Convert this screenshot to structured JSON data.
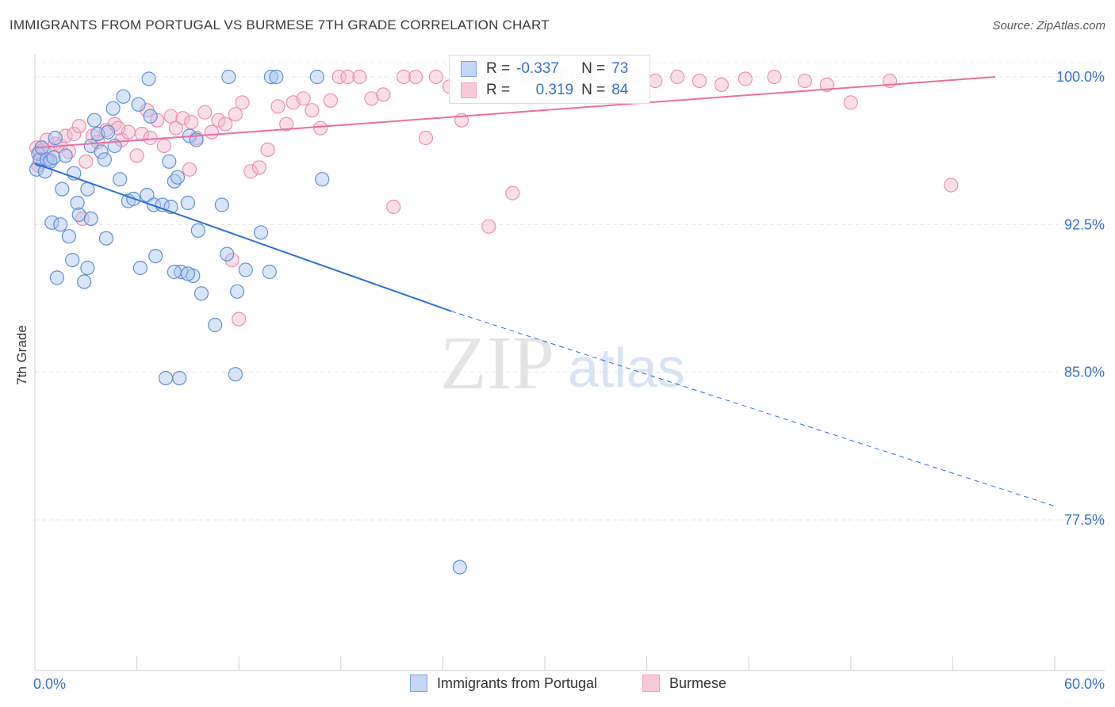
{
  "title": "IMMIGRANTS FROM PORTUGAL VS BURMESE 7TH GRADE CORRELATION CHART",
  "source": "Source: ZipAtlas.com",
  "watermark": {
    "zip": "ZIP",
    "atlas": "atlas"
  },
  "legend": {
    "series1": {
      "r_label": "R =",
      "r_value": "-0.337",
      "n_label": "N =",
      "n_value": "73"
    },
    "series2": {
      "r_label": "R =",
      "r_value": "0.319",
      "n_label": "N =",
      "n_value": "84"
    }
  },
  "bottom_legend": {
    "series1": "Immigrants from Portugal",
    "series2": "Burmese"
  },
  "chart_data": {
    "type": "scatter",
    "ylabel": "7th Grade",
    "xlim": [
      0,
      60
    ],
    "ylim": [
      71,
      100.8
    ],
    "x_tick_labels": [
      "0.0%",
      "60.0%"
    ],
    "y_ticks": [
      100.0,
      92.5,
      85.0,
      77.5
    ],
    "y_tick_labels": [
      "100.0%",
      "92.5%",
      "85.0%",
      "77.5%"
    ],
    "grid": true,
    "colors": {
      "series1": "#6f9fe0",
      "series2": "#f0a0be",
      "trend1": "#2b6fd4",
      "trend2": "#e8709a",
      "tick_label": "#3a6fd0"
    },
    "series": [
      {
        "name": "Immigrants from Portugal",
        "trend": {
          "x0": 0,
          "y0": 95.6,
          "x1": 24.5,
          "y1": 88.1,
          "x_dash_end": 60,
          "y_dash_end": 78.2
        },
        "points": [
          [
            0.1,
            95.3
          ],
          [
            0.2,
            96.1
          ],
          [
            0.3,
            95.8
          ],
          [
            0.4,
            96.4
          ],
          [
            0.6,
            95.2
          ],
          [
            0.7,
            95.8
          ],
          [
            0.9,
            95.7
          ],
          [
            1.1,
            95.9
          ],
          [
            1.2,
            96.9
          ],
          [
            1.6,
            94.3
          ],
          [
            1.8,
            96.0
          ],
          [
            2.3,
            95.1
          ],
          [
            2.5,
            93.6
          ],
          [
            2.6,
            93.0
          ],
          [
            3.1,
            94.3
          ],
          [
            3.3,
            96.5
          ],
          [
            3.5,
            97.8
          ],
          [
            3.7,
            97.1
          ],
          [
            3.9,
            96.2
          ],
          [
            4.1,
            95.8
          ],
          [
            4.3,
            97.2
          ],
          [
            4.6,
            98.4
          ],
          [
            4.7,
            96.5
          ],
          [
            5.0,
            94.8
          ],
          [
            5.2,
            99.0
          ],
          [
            5.5,
            93.7
          ],
          [
            5.8,
            93.8
          ],
          [
            6.1,
            98.6
          ],
          [
            6.6,
            94.0
          ],
          [
            6.7,
            99.9
          ],
          [
            6.8,
            98.0
          ],
          [
            7.0,
            93.5
          ],
          [
            7.1,
            90.9
          ],
          [
            7.5,
            93.5
          ],
          [
            7.9,
            95.7
          ],
          [
            8.0,
            93.4
          ],
          [
            8.2,
            94.7
          ],
          [
            8.4,
            94.9
          ],
          [
            8.6,
            90.1
          ],
          [
            9.0,
            93.6
          ],
          [
            9.1,
            97.0
          ],
          [
            9.5,
            96.8
          ],
          [
            9.6,
            92.2
          ],
          [
            9.3,
            89.9
          ],
          [
            9.8,
            89.0
          ],
          [
            10.6,
            87.4
          ],
          [
            11.0,
            93.5
          ],
          [
            11.3,
            91.0
          ],
          [
            11.4,
            100.0
          ],
          [
            11.8,
            84.9
          ],
          [
            11.9,
            89.1
          ],
          [
            12.4,
            90.2
          ],
          [
            13.3,
            92.1
          ],
          [
            13.8,
            90.1
          ],
          [
            13.9,
            100.0
          ],
          [
            14.2,
            100.0
          ],
          [
            16.6,
            100.0
          ],
          [
            16.9,
            94.8
          ],
          [
            25.0,
            75.1
          ],
          [
            1.0,
            92.6
          ],
          [
            1.5,
            92.5
          ],
          [
            2.0,
            91.9
          ],
          [
            2.2,
            90.7
          ],
          [
            3.1,
            90.3
          ],
          [
            4.2,
            91.8
          ],
          [
            6.2,
            90.3
          ],
          [
            7.7,
            84.7
          ],
          [
            8.2,
            90.1
          ],
          [
            8.5,
            84.7
          ],
          [
            9.0,
            90.0
          ],
          [
            1.3,
            89.8
          ],
          [
            2.9,
            89.6
          ],
          [
            3.3,
            92.8
          ]
        ]
      },
      {
        "name": "Burmese",
        "trend": {
          "x0": 0,
          "y0": 96.4,
          "x1": 56.5,
          "y1": 100.0
        },
        "points": [
          [
            0.1,
            96.4
          ],
          [
            0.2,
            95.5
          ],
          [
            0.3,
            96.2
          ],
          [
            0.5,
            96.3
          ],
          [
            0.7,
            96.8
          ],
          [
            0.9,
            95.8
          ],
          [
            1.2,
            96.6
          ],
          [
            1.5,
            96.5
          ],
          [
            1.8,
            97.0
          ],
          [
            2.0,
            96.2
          ],
          [
            2.3,
            97.1
          ],
          [
            2.6,
            97.5
          ],
          [
            3.0,
            95.7
          ],
          [
            3.4,
            97.0
          ],
          [
            3.7,
            96.7
          ],
          [
            4.2,
            97.3
          ],
          [
            4.7,
            97.6
          ],
          [
            5.1,
            96.8
          ],
          [
            5.5,
            97.2
          ],
          [
            6.0,
            96.0
          ],
          [
            6.3,
            97.1
          ],
          [
            6.8,
            96.9
          ],
          [
            7.2,
            97.8
          ],
          [
            7.6,
            96.5
          ],
          [
            8.0,
            98.0
          ],
          [
            8.3,
            97.4
          ],
          [
            8.7,
            97.9
          ],
          [
            9.2,
            97.7
          ],
          [
            9.5,
            96.9
          ],
          [
            10.0,
            98.2
          ],
          [
            10.4,
            97.2
          ],
          [
            10.8,
            97.8
          ],
          [
            11.2,
            97.6
          ],
          [
            11.8,
            98.1
          ],
          [
            12.2,
            98.7
          ],
          [
            12.7,
            95.2
          ],
          [
            13.2,
            95.4
          ],
          [
            13.7,
            96.3
          ],
          [
            14.3,
            98.5
          ],
          [
            14.8,
            97.6
          ],
          [
            15.2,
            98.7
          ],
          [
            15.8,
            98.9
          ],
          [
            16.3,
            98.3
          ],
          [
            16.8,
            97.4
          ],
          [
            17.4,
            98.8
          ],
          [
            17.9,
            100.0
          ],
          [
            18.4,
            100.0
          ],
          [
            19.1,
            100.0
          ],
          [
            19.8,
            98.9
          ],
          [
            20.5,
            99.1
          ],
          [
            21.1,
            93.4
          ],
          [
            21.7,
            100.0
          ],
          [
            22.4,
            100.0
          ],
          [
            23.0,
            96.9
          ],
          [
            23.6,
            100.0
          ],
          [
            24.4,
            99.5
          ],
          [
            25.1,
            97.8
          ],
          [
            25.9,
            100.0
          ],
          [
            26.7,
            92.4
          ],
          [
            27.4,
            99.8
          ],
          [
            28.1,
            94.1
          ],
          [
            29.0,
            100.0
          ],
          [
            30.2,
            100.0
          ],
          [
            31.3,
            100.0
          ],
          [
            32.6,
            100.0
          ],
          [
            33.4,
            99.3
          ],
          [
            35.1,
            100.0
          ],
          [
            36.5,
            99.8
          ],
          [
            37.8,
            100.0
          ],
          [
            39.1,
            99.8
          ],
          [
            40.4,
            99.6
          ],
          [
            41.8,
            99.9
          ],
          [
            43.5,
            100.0
          ],
          [
            45.3,
            99.8
          ],
          [
            46.6,
            99.6
          ],
          [
            48.0,
            98.7
          ],
          [
            50.3,
            99.8
          ],
          [
            53.9,
            94.5
          ],
          [
            2.8,
            92.8
          ],
          [
            9.1,
            95.3
          ],
          [
            11.6,
            90.7
          ],
          [
            12.0,
            87.7
          ],
          [
            4.9,
            97.4
          ],
          [
            6.6,
            98.3
          ]
        ]
      }
    ]
  }
}
